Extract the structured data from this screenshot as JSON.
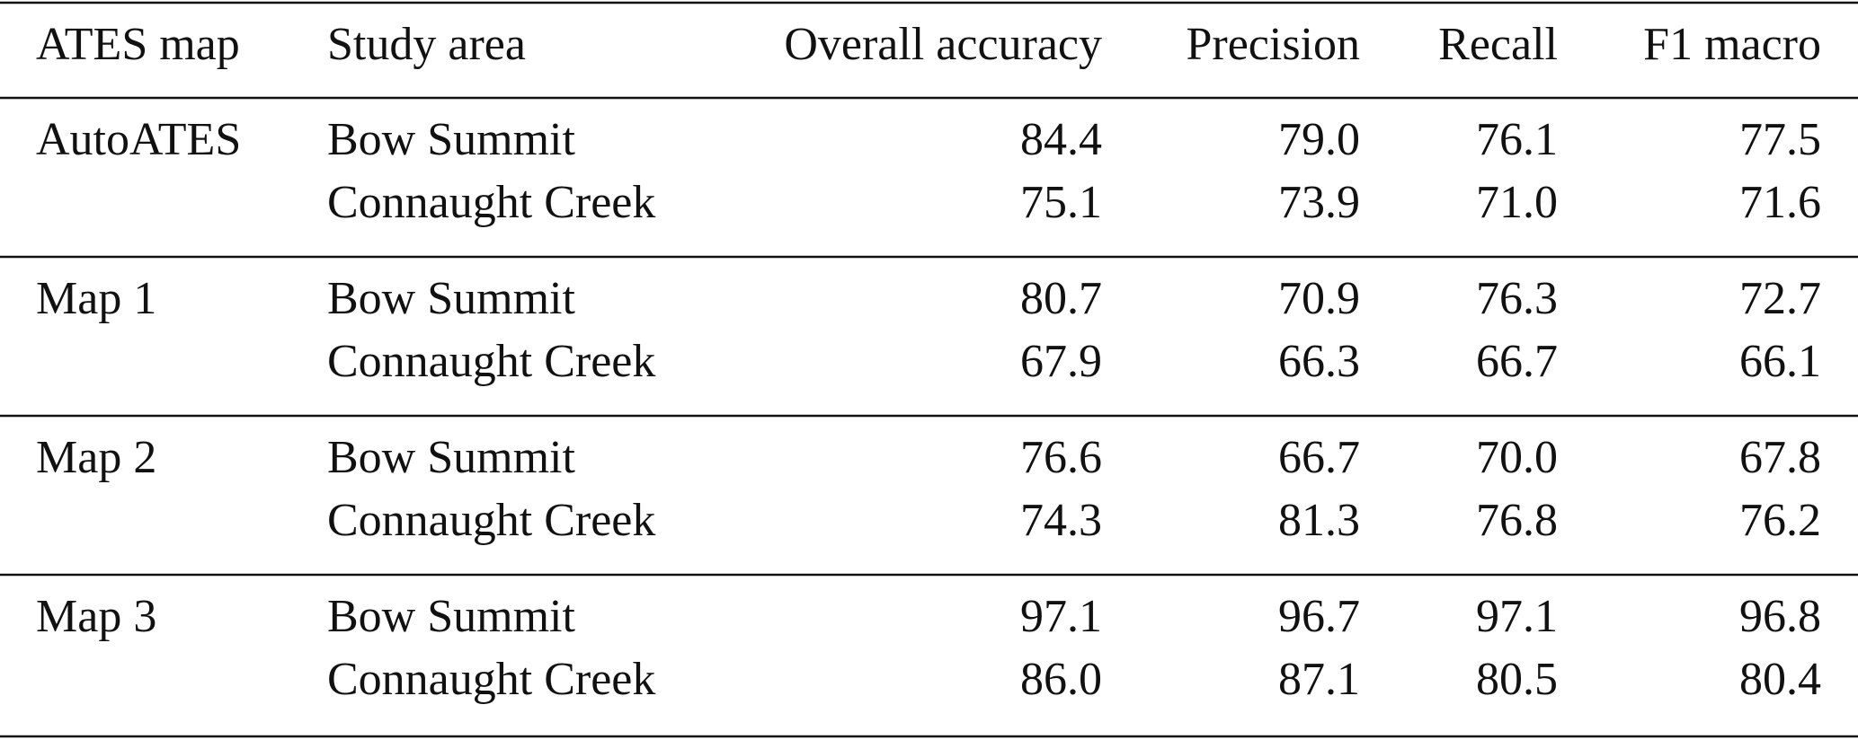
{
  "table": {
    "header": [
      "ATES map",
      "Study area",
      "Overall accuracy",
      "Precision",
      "Recall",
      "F1 macro"
    ],
    "groups": [
      {
        "map": "AutoATES",
        "rows": [
          [
            "Bow Summit",
            "84.4",
            "79.0",
            "76.1",
            "77.5"
          ],
          [
            "Connaught Creek",
            "75.1",
            "73.9",
            "71.0",
            "71.6"
          ]
        ]
      },
      {
        "map": "Map 1",
        "rows": [
          [
            "Bow Summit",
            "80.7",
            "70.9",
            "76.3",
            "72.7"
          ],
          [
            "Connaught Creek",
            "67.9",
            "66.3",
            "66.7",
            "66.1"
          ]
        ]
      },
      {
        "map": "Map 2",
        "rows": [
          [
            "Bow Summit",
            "76.6",
            "66.7",
            "70.0",
            "67.8"
          ],
          [
            "Connaught Creek",
            "74.3",
            "81.3",
            "76.8",
            "76.2"
          ]
        ]
      },
      {
        "map": "Map 3",
        "rows": [
          [
            "Bow Summit",
            "97.1",
            "96.7",
            "97.1",
            "96.8"
          ],
          [
            "Connaught Creek",
            "86.0",
            "87.1",
            "80.5",
            "80.4"
          ]
        ]
      }
    ]
  }
}
